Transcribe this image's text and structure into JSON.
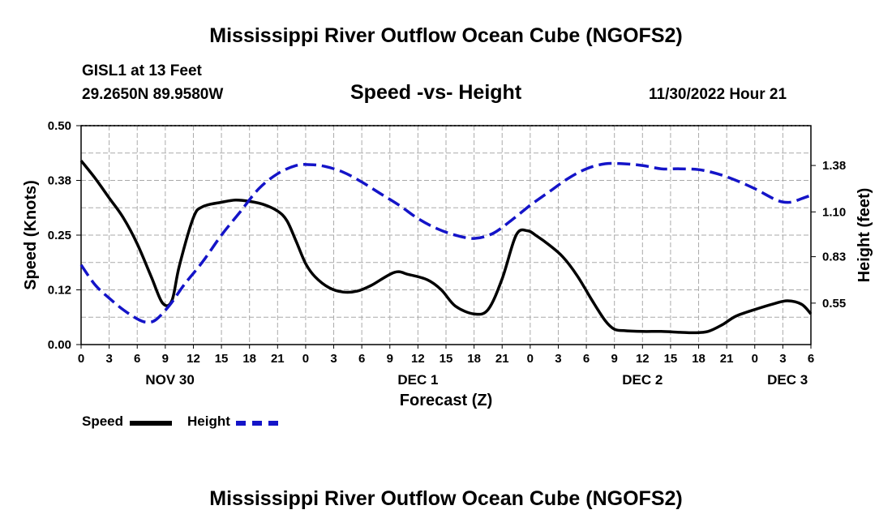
{
  "page": {
    "title": "Mississippi River Outflow Ocean Cube (NGOFS2)",
    "footer_title": "Mississippi River Outflow Ocean Cube (NGOFS2)",
    "station": "GISL1 at 13 Feet",
    "coords": "29.2650N  89.9580W",
    "datetime": "11/30/2022 Hour 21"
  },
  "legend": {
    "speed_label": "Speed",
    "height_label": "Height",
    "speed_color": "#000000",
    "height_color": "#1414c8"
  },
  "chart_data": {
    "type": "line",
    "title": "Speed -vs- Height",
    "xlabel": "Forecast (Z)",
    "ylabel": "Speed (Knots)",
    "y2label": "Height (feet)",
    "grid": true,
    "x_range": [
      0,
      78
    ],
    "ylim": [
      0,
      0.5
    ],
    "y_ticks": [
      "0.00",
      "0.12",
      "0.25",
      "0.38",
      "0.50"
    ],
    "y2lim": [
      0.3,
      1.62
    ],
    "y2_ticks": [
      "0.55",
      "0.83",
      "1.10",
      "1.38"
    ],
    "x_tick_labels": [
      "0",
      "3",
      "6",
      "9",
      "12",
      "15",
      "18",
      "21",
      "0",
      "3",
      "6",
      "9",
      "12",
      "15",
      "18",
      "21",
      "0",
      "3",
      "6",
      "9",
      "12",
      "15",
      "18",
      "21",
      "0",
      "3",
      "6"
    ],
    "day_labels": [
      {
        "label": "NOV 30",
        "hour": 9.5
      },
      {
        "label": "DEC 1",
        "hour": 36
      },
      {
        "label": "DEC 2",
        "hour": 60
      },
      {
        "label": "DEC 3",
        "hour": 75.5
      }
    ],
    "series": [
      {
        "name": "Speed",
        "axis": "left",
        "x": [
          0,
          1.5,
          3,
          4.5,
          6,
          7.5,
          8.7,
          9.7,
          10.5,
          12,
          13,
          15,
          16.5,
          18,
          19.5,
          21,
          22,
          23,
          24,
          25,
          26.5,
          28,
          29.5,
          31,
          33.5,
          35,
          37,
          38.5,
          40,
          42,
          43.5,
          45,
          46.5,
          47.7,
          48.7,
          50,
          51.5,
          53,
          54.5,
          56,
          57,
          58,
          60,
          62,
          64,
          65.5,
          67,
          68.5,
          70,
          72,
          74,
          75.5,
          77,
          78
        ],
        "values": [
          0.42,
          0.38,
          0.335,
          0.29,
          0.23,
          0.155,
          0.095,
          0.1,
          0.18,
          0.29,
          0.315,
          0.325,
          0.33,
          0.327,
          0.32,
          0.305,
          0.283,
          0.235,
          0.185,
          0.155,
          0.13,
          0.12,
          0.122,
          0.135,
          0.165,
          0.16,
          0.148,
          0.125,
          0.088,
          0.07,
          0.08,
          0.15,
          0.25,
          0.26,
          0.248,
          0.228,
          0.2,
          0.158,
          0.105,
          0.055,
          0.035,
          0.032,
          0.03,
          0.03,
          0.028,
          0.027,
          0.03,
          0.045,
          0.065,
          0.08,
          0.093,
          0.1,
          0.092,
          0.07
        ]
      },
      {
        "name": "Height",
        "axis": "right",
        "x": [
          0,
          1.5,
          3,
          4.5,
          6,
          7,
          8,
          9.5,
          11,
          13,
          15,
          17,
          19,
          21,
          23,
          24.5,
          26,
          28,
          30,
          32,
          34,
          36,
          38,
          40,
          42,
          44,
          46,
          48,
          50,
          52,
          54,
          56,
          58,
          60,
          62,
          64,
          66,
          68,
          70,
          72,
          74,
          75,
          76,
          77,
          78
        ],
        "values": [
          0.78,
          0.66,
          0.58,
          0.51,
          0.455,
          0.435,
          0.45,
          0.54,
          0.66,
          0.8,
          0.96,
          1.1,
          1.24,
          1.33,
          1.38,
          1.385,
          1.375,
          1.34,
          1.28,
          1.21,
          1.14,
          1.06,
          1.0,
          0.96,
          0.94,
          0.97,
          1.05,
          1.14,
          1.22,
          1.3,
          1.36,
          1.39,
          1.39,
          1.38,
          1.36,
          1.36,
          1.355,
          1.33,
          1.29,
          1.24,
          1.18,
          1.16,
          1.16,
          1.18,
          1.2
        ]
      }
    ]
  }
}
